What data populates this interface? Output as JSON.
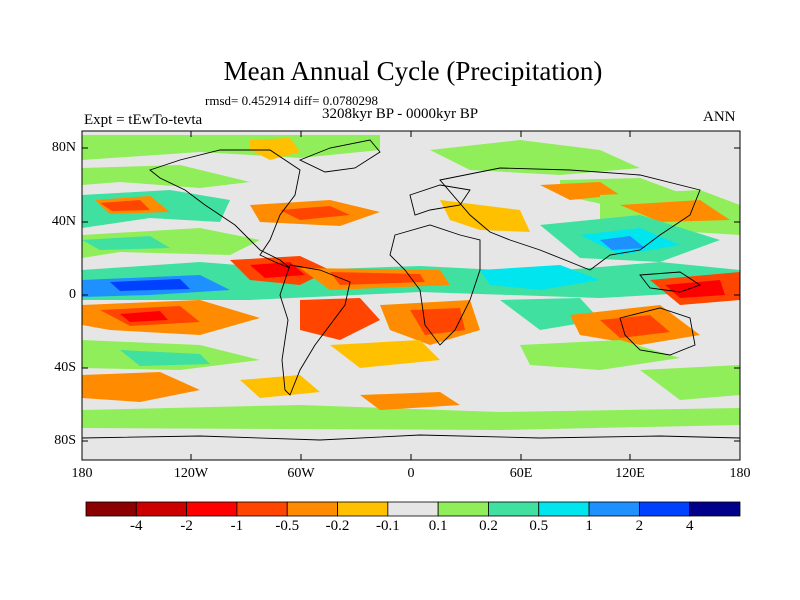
{
  "title": "Mean Annual Cycle (Precipitation)",
  "stats": "rmsd= 0.452914 diff= 0.0780298",
  "period": "3208kyr BP - 0000kyr BP",
  "experiment": "Expt = tEwTo-tevta",
  "season": "ANN",
  "lat_labels": [
    "80N",
    "40N",
    "0",
    "40S",
    "80S"
  ],
  "lon_labels": [
    "180",
    "120W",
    "60W",
    "0",
    "60E",
    "120E",
    "180"
  ],
  "colorbar": {
    "colors": [
      "#8b0000",
      "#cd0000",
      "#ff0000",
      "#ff4500",
      "#ff8c00",
      "#ffc000",
      "#e6e6e6",
      "#90ee5a",
      "#40e0a0",
      "#00e5ee",
      "#1e90ff",
      "#0040ff",
      "#00008b"
    ],
    "labels": [
      "-4",
      "-2",
      "-1",
      "-0.5",
      "-0.2",
      "-0.1",
      "0.1",
      "0.2",
      "0.5",
      "1",
      "2",
      "4"
    ]
  }
}
